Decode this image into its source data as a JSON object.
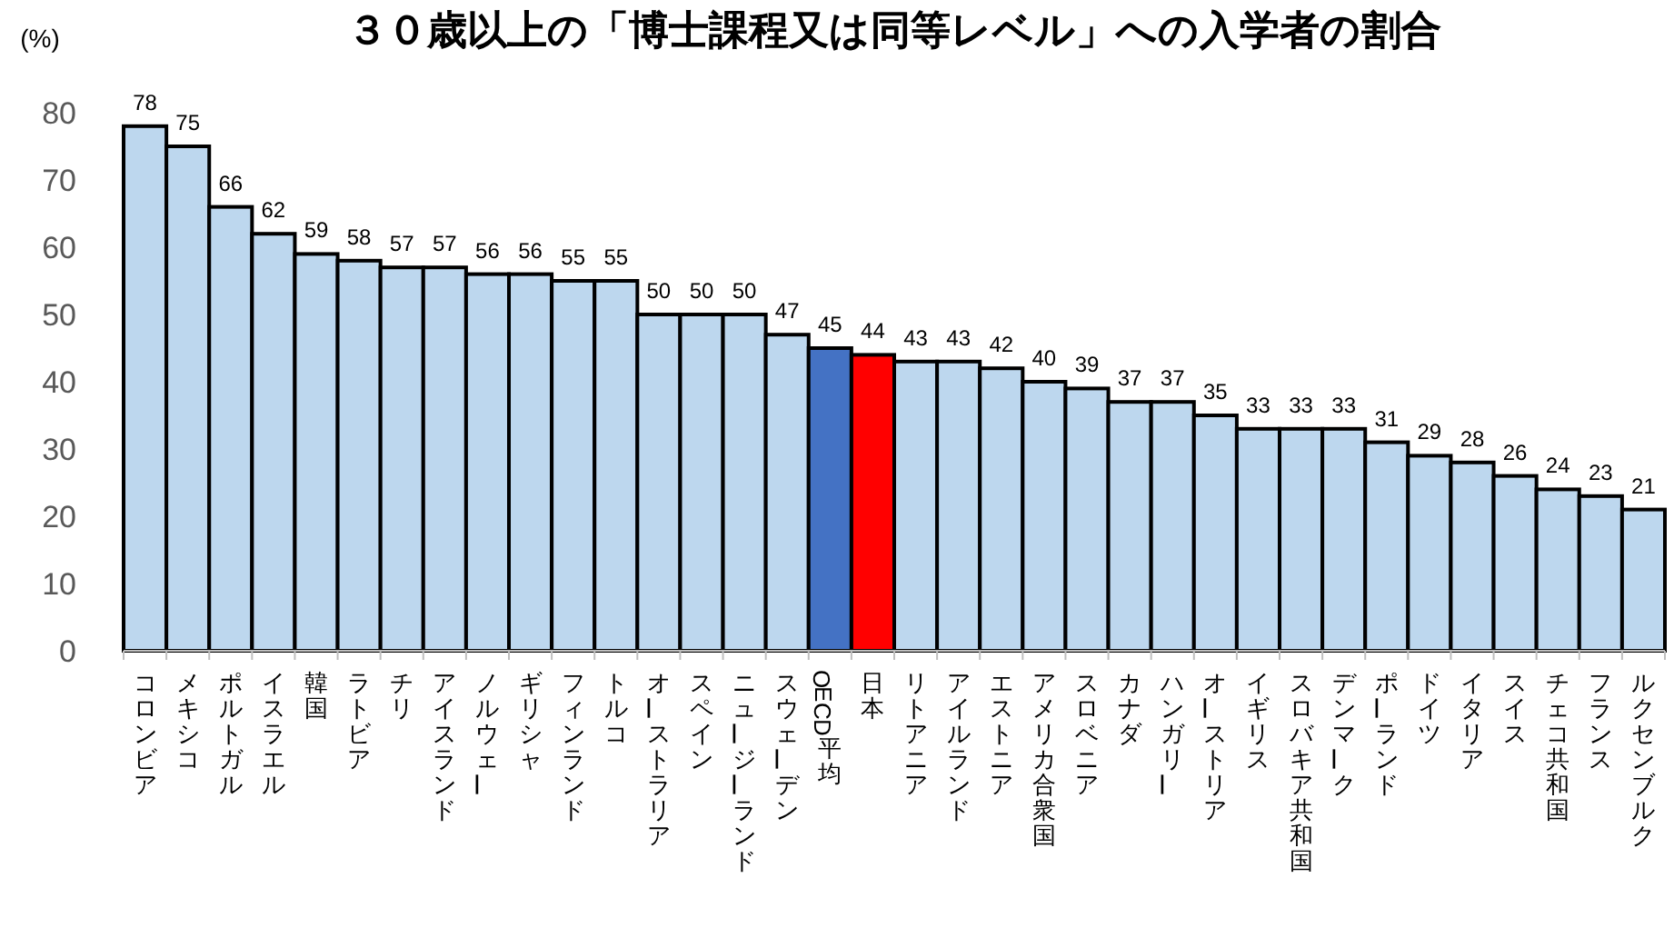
{
  "chart_data": {
    "type": "bar",
    "title": "３０歳以上の「博士課程又は同等レベル」への入学者の割合",
    "ylabel": "(%)",
    "categories": [
      "コロンビア",
      "メキシコ",
      "ポルトガル",
      "イスラエル",
      "韓国",
      "ラトビア",
      "チリ",
      "アイスランド",
      "ノルウェー",
      "ギリシャ",
      "フィンランド",
      "トルコ",
      "オーストラリア",
      "スペイン",
      "ニュージーランド",
      "スウェーデン",
      "OECD平均",
      "日本",
      "リトアニア",
      "アイルランド",
      "エストニア",
      "アメリカ合衆国",
      "スロベニア",
      "カナダ",
      "ハンガリー",
      "オーストリア",
      "イギリス",
      "スロバキア共和国",
      "デンマーク",
      "ポーランド",
      "ドイツ",
      "イタリア",
      "スイス",
      "チェコ共和国",
      "フランス",
      "ルクセンブルク"
    ],
    "values": [
      78,
      75,
      66,
      62,
      59,
      58,
      57,
      57,
      56,
      56,
      55,
      55,
      50,
      50,
      50,
      47,
      45,
      44,
      43,
      43,
      42,
      40,
      39,
      37,
      37,
      35,
      33,
      33,
      33,
      31,
      29,
      28,
      26,
      24,
      23,
      21
    ],
    "colors": [
      "#bdd7ee",
      "#bdd7ee",
      "#bdd7ee",
      "#bdd7ee",
      "#bdd7ee",
      "#bdd7ee",
      "#bdd7ee",
      "#bdd7ee",
      "#bdd7ee",
      "#bdd7ee",
      "#bdd7ee",
      "#bdd7ee",
      "#bdd7ee",
      "#bdd7ee",
      "#bdd7ee",
      "#bdd7ee",
      "#4472c4",
      "#ff0000",
      "#bdd7ee",
      "#bdd7ee",
      "#bdd7ee",
      "#bdd7ee",
      "#bdd7ee",
      "#bdd7ee",
      "#bdd7ee",
      "#bdd7ee",
      "#bdd7ee",
      "#bdd7ee",
      "#bdd7ee",
      "#bdd7ee",
      "#bdd7ee",
      "#bdd7ee",
      "#bdd7ee",
      "#bdd7ee",
      "#bdd7ee",
      "#bdd7ee"
    ],
    "ylim": [
      0,
      80
    ],
    "yticks": [
      0,
      10,
      20,
      30,
      40,
      50,
      60,
      70,
      80
    ],
    "data_labels": true,
    "grid": false
  }
}
